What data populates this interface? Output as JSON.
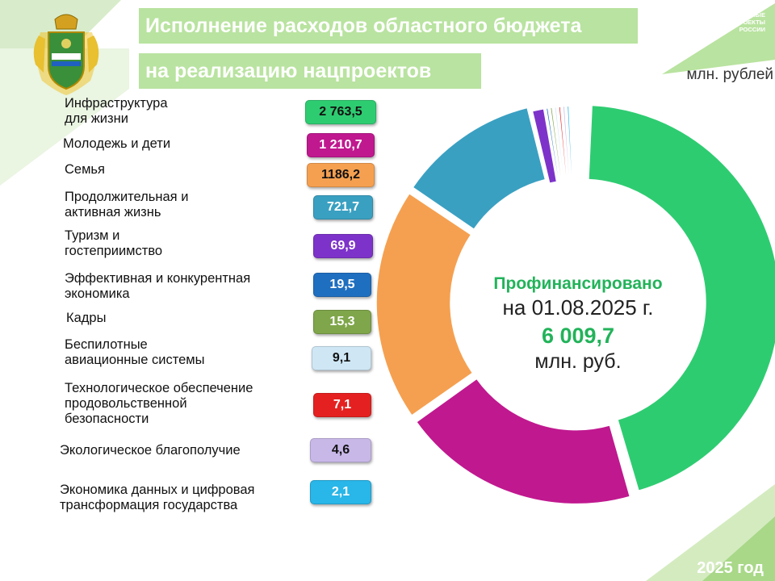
{
  "header": {
    "title_line1": "Исполнение расходов областного бюджета",
    "title_line2": "на реализацию нацпроектов",
    "logo_text_line1": "НАЦИОНАЛЬНЫЕ",
    "logo_text_line2": "ПРОЕКТЫ",
    "logo_text_line3": "РОССИИ",
    "unit": "млн. рублей"
  },
  "center": {
    "line1": "Профинансировано",
    "line2": "на 01.08.2025   г.",
    "line3": "6 009,7",
    "line4": "млн. руб."
  },
  "footer": {
    "year": "2025 год"
  },
  "colors": {
    "accent_green": "#22b35a",
    "light_green": "#b9e3a0"
  },
  "chart_data": {
    "type": "pie",
    "total": 6009.7,
    "categories": [
      {
        "name": [
          "Инфраструктура",
          "для жизни"
        ],
        "value": 2763.5,
        "label": "2 763,5",
        "color": "#2ecc71"
      },
      {
        "name": [
          "Молодежь и дети"
        ],
        "value": 1210.7,
        "label": "1 210,7",
        "color": "#c0188f"
      },
      {
        "name": [
          "Семья"
        ],
        "value": 1186.2,
        "label": "1186,2",
        "color": "#f5a050"
      },
      {
        "name": [
          "Продолжительная и",
          "активная жизнь"
        ],
        "value": 721.7,
        "label": "721,7",
        "color": "#3aa0c2"
      },
      {
        "name": [
          "Туризм и",
          "гостеприимство"
        ],
        "value": 69.9,
        "label": "69,9",
        "color": "#7d33c9"
      },
      {
        "name": [
          "Эффективная и конкурентная",
          "экономика"
        ],
        "value": 19.5,
        "label": "19,5",
        "color": "#1f6fc0"
      },
      {
        "name": [
          "Кадры"
        ],
        "value": 15.3,
        "label": "15,3",
        "color": "#7fa64a"
      },
      {
        "name": [
          "Беспилотные",
          "авиационные системы"
        ],
        "value": 9.1,
        "label": "9,1",
        "color": "#cfe7f5"
      },
      {
        "name": [
          "Технологическое обеспечение",
          "продовольственной",
          "безопасности"
        ],
        "value": 7.1,
        "label": "7,1",
        "color": "#e52020"
      },
      {
        "name": [
          "Экологическое благополучие"
        ],
        "value": 4.6,
        "label": "4,6",
        "color": "#c8b8e8"
      },
      {
        "name": [
          "Экономика данных и цифровая",
          "трансформация государства"
        ],
        "value": 2.1,
        "label": "2,1",
        "color": "#29b6e8"
      }
    ]
  }
}
